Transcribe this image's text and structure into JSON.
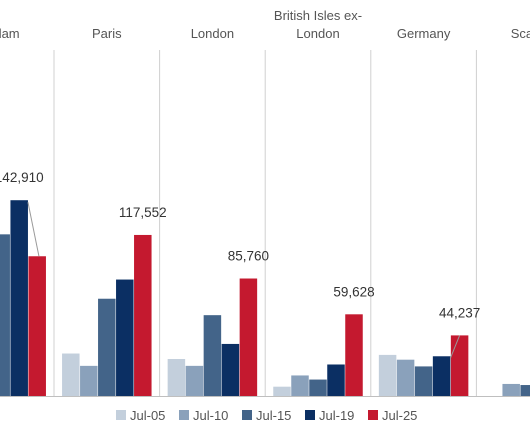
{
  "chart_data": {
    "type": "bar",
    "title": "",
    "xlabel": "",
    "ylabel": "",
    "ylim": [
      0,
      165000
    ],
    "grid": false,
    "legend_position": "bottom",
    "groups": [
      {
        "name_lines": [
          "erdam"
        ]
      },
      {
        "name_lines": [
          "Paris"
        ]
      },
      {
        "name_lines": [
          "London"
        ]
      },
      {
        "name_lines": [
          "British Isles ex-",
          "London"
        ]
      },
      {
        "name_lines": [
          "Germany"
        ]
      },
      {
        "name_lines": [
          "Scand"
        ]
      }
    ],
    "series": [
      {
        "name": "Jul-05",
        "color": "#c3cfdc",
        "values": [
          null,
          31000,
          27000,
          6800,
          30000,
          null
        ]
      },
      {
        "name": "Jul-10",
        "color": "#8aa1bb",
        "values": [
          null,
          22000,
          22000,
          15000,
          26500,
          8800
        ]
      },
      {
        "name": "Jul-15",
        "color": "#436489",
        "values": [
          118000,
          71000,
          59000,
          12000,
          21600,
          8000
        ]
      },
      {
        "name": "Jul-19",
        "color": "#0b2f63",
        "values": [
          142910,
          85000,
          38000,
          23000,
          29000,
          null
        ]
      },
      {
        "name": "Jul-25",
        "color": "#c4192f",
        "values": [
          102000,
          117552,
          85760,
          59628,
          44237,
          null
        ]
      }
    ],
    "data_labels": [
      {
        "group": 0,
        "series": 3,
        "text": "142,910"
      },
      {
        "group": 1,
        "series": 4,
        "text": "117,552"
      },
      {
        "group": 2,
        "series": 4,
        "text": "85,760"
      },
      {
        "group": 3,
        "series": 4,
        "text": "59,628"
      },
      {
        "group": 4,
        "series": 4,
        "text": "44,237"
      }
    ]
  }
}
